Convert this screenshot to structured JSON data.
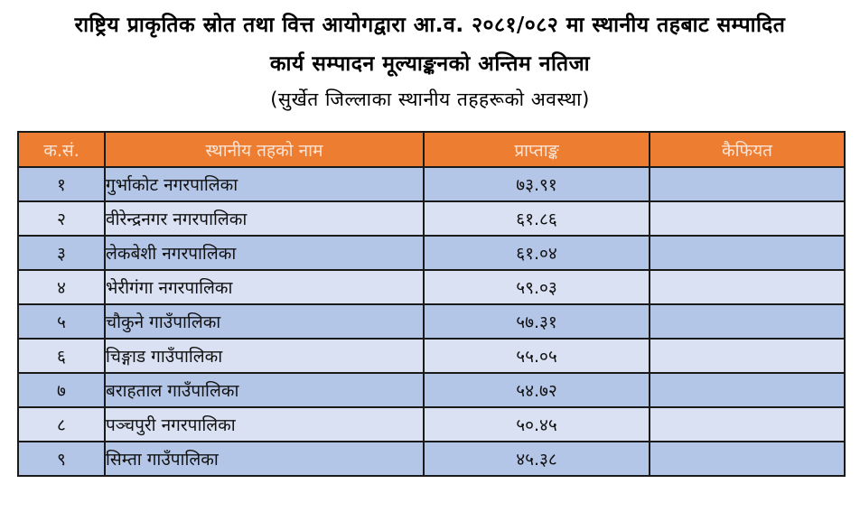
{
  "document": {
    "title_line_1": "राष्ट्रिय प्राकृतिक स्रोत तथा वित्त आयोगद्वारा आ.व. २०८१/०८२ मा स्थानीय तहबाट सम्पादित",
    "title_line_2": "कार्य सम्पादन मूल्याङ्कनको अन्तिम नतिजा",
    "subtitle": "(सुर्खेत जिल्लाका स्थानीय तहहरूको अवस्था)"
  },
  "table": {
    "headers": {
      "serial": "क.सं.",
      "name": "स्थानीय तहको नाम",
      "score": "प्राप्ताङ्क",
      "remarks": "कैफियत"
    },
    "rows": [
      {
        "serial": "१",
        "name": "गुर्भाकोट नगरपालिका",
        "score": "७३.९१",
        "remarks": ""
      },
      {
        "serial": "२",
        "name": "वीरेन्द्रनगर नगरपालिका",
        "score": "६१.८६",
        "remarks": ""
      },
      {
        "serial": "३",
        "name": "लेकबेशी नगरपालिका",
        "score": "६१.०४",
        "remarks": ""
      },
      {
        "serial": "४",
        "name": "भेरीगंगा नगरपालिका",
        "score": "५९.०३",
        "remarks": ""
      },
      {
        "serial": "५",
        "name": "चौकुने गाउँपालिका",
        "score": "५७.३१",
        "remarks": ""
      },
      {
        "serial": "६",
        "name": "चिङ्गाड गाउँपालिका",
        "score": "५५.०५",
        "remarks": ""
      },
      {
        "serial": "७",
        "name": "बराहताल गाउँपालिका",
        "score": "५४.७२",
        "remarks": ""
      },
      {
        "serial": "८",
        "name": "पञ्चपुरी नगरपालिका",
        "score": "५०.४५",
        "remarks": ""
      },
      {
        "serial": "९",
        "name": "सिम्ता गाउँपालिका",
        "score": "४५.३८",
        "remarks": ""
      }
    ]
  },
  "colors": {
    "header_bg": "#ED7D31",
    "header_text": "#FBE4D5",
    "row_odd_bg": "#B4C6E7",
    "row_even_bg": "#D9E1F2",
    "border": "#1a1a1a"
  }
}
